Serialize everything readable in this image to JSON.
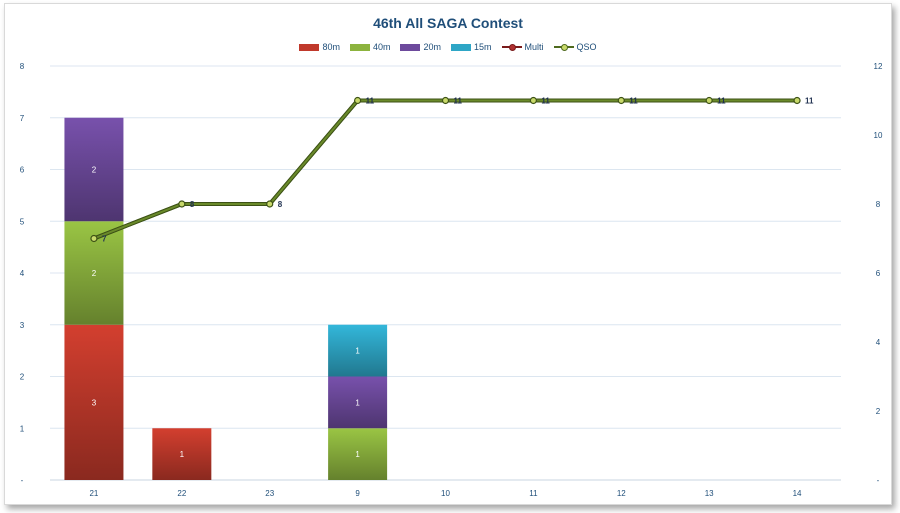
{
  "chart_data": {
    "type": "bar",
    "title": "46th All SAGA Contest",
    "categories": [
      "21",
      "22",
      "23",
      "9",
      "10",
      "11",
      "12",
      "13",
      "14"
    ],
    "series": [
      {
        "name": "80m",
        "kind": "stacked-bar",
        "axis": "left",
        "color": "#c0392b",
        "values": [
          3,
          1,
          0,
          0,
          0,
          0,
          0,
          0,
          0
        ]
      },
      {
        "name": "40m",
        "kind": "stacked-bar",
        "axis": "left",
        "color": "#8cb33e",
        "values": [
          2,
          0,
          0,
          1,
          0,
          0,
          0,
          0,
          0
        ]
      },
      {
        "name": "20m",
        "kind": "stacked-bar",
        "axis": "left",
        "color": "#6d4a9c",
        "values": [
          2,
          0,
          0,
          1,
          0,
          0,
          0,
          0,
          0
        ]
      },
      {
        "name": "15m",
        "kind": "stacked-bar",
        "axis": "left",
        "color": "#2ea6c6",
        "values": [
          0,
          0,
          0,
          1,
          0,
          0,
          0,
          0,
          0
        ]
      },
      {
        "name": "Multi",
        "kind": "line",
        "axis": "right",
        "color": "#7a1b1b",
        "values": [
          7,
          8,
          8,
          11,
          11,
          11,
          11,
          11,
          11
        ]
      },
      {
        "name": "QSO",
        "kind": "line",
        "axis": "right",
        "color": "#6a8a2a",
        "values": [
          7,
          8,
          8,
          11,
          11,
          11,
          11,
          11,
          11
        ]
      }
    ],
    "y_left": {
      "min": 0,
      "max": 8,
      "ticks": [
        "-",
        "1",
        "2",
        "3",
        "4",
        "5",
        "6",
        "7",
        "8"
      ]
    },
    "y_right": {
      "min": 0,
      "max": 12,
      "ticks": [
        "-",
        "2",
        "4",
        "6",
        "8",
        "10",
        "12"
      ]
    },
    "grid": true,
    "legend_position": "top"
  }
}
